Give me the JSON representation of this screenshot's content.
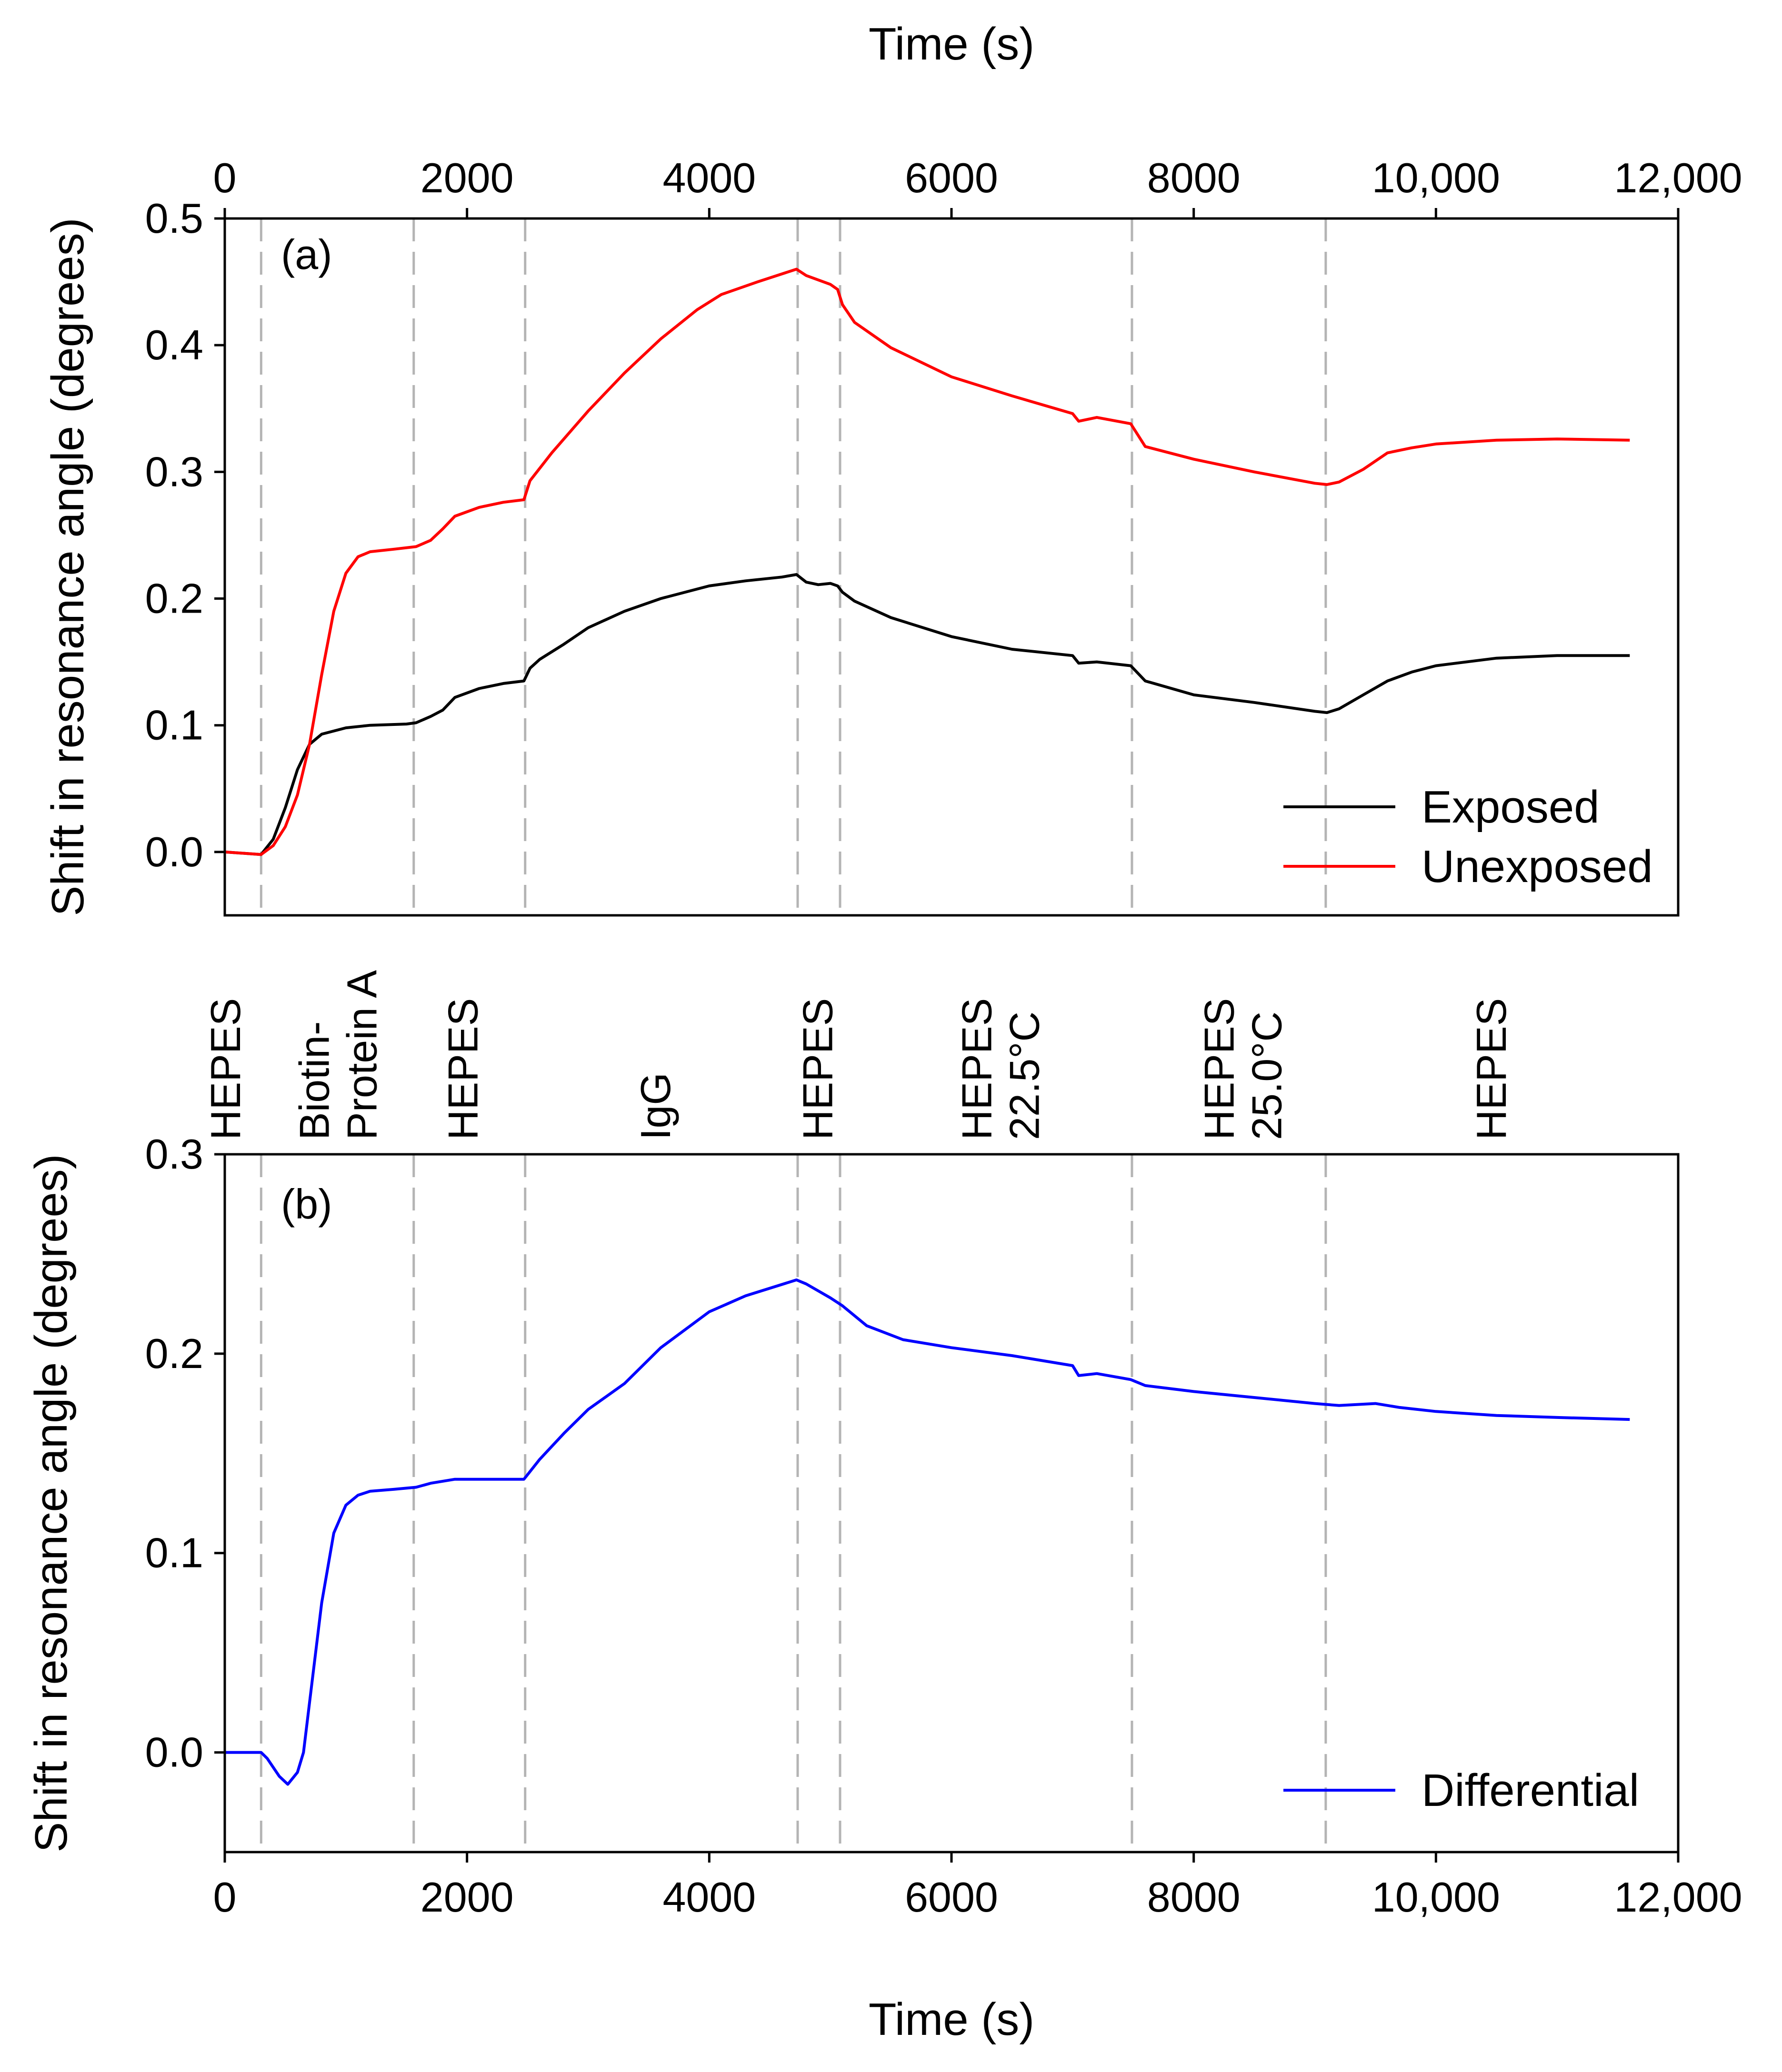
{
  "chart_data": [
    {
      "type": "line",
      "panel_label": "(a)",
      "xlabel_top": "Time (s)",
      "xlabel": "",
      "ylabel": "Shift in resonance angle (degrees)",
      "xlim": [
        0,
        12000
      ],
      "ylim": [
        -0.05,
        0.5
      ],
      "x_ticks": [
        0,
        2000,
        4000,
        6000,
        8000,
        10000,
        12000
      ],
      "x_tick_labels": [
        "0",
        "2000",
        "4000",
        "6000",
        "8000",
        "10,000",
        "12,000"
      ],
      "y_ticks": [
        0.0,
        0.1,
        0.2,
        0.3,
        0.4,
        0.5
      ],
      "y_tick_labels": [
        "0.0",
        "0.1",
        "0.2",
        "0.3",
        "0.4",
        "0.5"
      ],
      "grid": false,
      "legend_position": "bottom-right",
      "series": [
        {
          "name": "Exposed",
          "color": "#000000",
          "x": [
            0,
            300,
            400,
            500,
            600,
            700,
            800,
            1000,
            1200,
            1500,
            1580,
            1700,
            1800,
            1900,
            2100,
            2300,
            2470,
            2520,
            2600,
            2800,
            3000,
            3300,
            3600,
            4000,
            4300,
            4600,
            4720,
            4800,
            4900,
            5000,
            5060,
            5100,
            5200,
            5500,
            6000,
            6500,
            7000,
            7050,
            7200,
            7480,
            7600,
            8000,
            8500,
            9000,
            9100,
            9200,
            9400,
            9600,
            9800,
            10000,
            10500,
            11000,
            11600
          ],
          "y": [
            0.0,
            -0.002,
            0.01,
            0.035,
            0.065,
            0.085,
            0.093,
            0.098,
            0.1,
            0.101,
            0.102,
            0.107,
            0.112,
            0.122,
            0.129,
            0.133,
            0.135,
            0.145,
            0.152,
            0.164,
            0.177,
            0.19,
            0.2,
            0.21,
            0.214,
            0.217,
            0.219,
            0.213,
            0.211,
            0.212,
            0.21,
            0.205,
            0.198,
            0.185,
            0.17,
            0.16,
            0.155,
            0.149,
            0.15,
            0.147,
            0.135,
            0.124,
            0.118,
            0.111,
            0.11,
            0.113,
            0.124,
            0.135,
            0.142,
            0.147,
            0.153,
            0.155,
            0.155
          ]
        },
        {
          "name": "Unexposed",
          "color": "#ff0000",
          "x": [
            0,
            300,
            400,
            500,
            600,
            700,
            800,
            900,
            1000,
            1100,
            1200,
            1400,
            1580,
            1700,
            1800,
            1900,
            2100,
            2300,
            2470,
            2520,
            2700,
            3000,
            3300,
            3600,
            3900,
            4100,
            4400,
            4720,
            4800,
            5000,
            5060,
            5100,
            5200,
            5500,
            6000,
            6500,
            7000,
            7050,
            7200,
            7480,
            7600,
            8000,
            8500,
            9000,
            9100,
            9200,
            9400,
            9600,
            9800,
            10000,
            10500,
            11000,
            11600
          ],
          "y": [
            0.0,
            -0.002,
            0.005,
            0.02,
            0.045,
            0.085,
            0.14,
            0.19,
            0.22,
            0.233,
            0.237,
            0.239,
            0.241,
            0.246,
            0.255,
            0.265,
            0.272,
            0.276,
            0.278,
            0.293,
            0.315,
            0.348,
            0.378,
            0.405,
            0.428,
            0.44,
            0.45,
            0.46,
            0.455,
            0.448,
            0.444,
            0.432,
            0.418,
            0.398,
            0.375,
            0.36,
            0.346,
            0.34,
            0.343,
            0.338,
            0.32,
            0.31,
            0.3,
            0.291,
            0.29,
            0.292,
            0.302,
            0.315,
            0.319,
            0.322,
            0.325,
            0.326,
            0.325
          ]
        }
      ]
    },
    {
      "type": "line",
      "panel_label": "(b)",
      "xlabel": "Time (s)",
      "ylabel": "Shift in resonance angle (degrees)",
      "xlim": [
        0,
        12000
      ],
      "ylim": [
        -0.05,
        0.3
      ],
      "x_ticks": [
        0,
        2000,
        4000,
        6000,
        8000,
        10000,
        12000
      ],
      "x_tick_labels": [
        "0",
        "2000",
        "4000",
        "6000",
        "8000",
        "10,000",
        "12,000"
      ],
      "y_ticks": [
        0.0,
        0.1,
        0.2,
        0.3
      ],
      "y_tick_labels": [
        "0.0",
        "0.1",
        "0.2",
        "0.3"
      ],
      "grid": false,
      "legend_position": "bottom-right",
      "series": [
        {
          "name": "Differential",
          "color": "#0000ff",
          "x": [
            0,
            300,
            350,
            450,
            520,
            600,
            650,
            700,
            800,
            900,
            1000,
            1100,
            1200,
            1400,
            1580,
            1700,
            1900,
            2100,
            2470,
            2600,
            2800,
            3000,
            3300,
            3600,
            4000,
            4300,
            4720,
            4800,
            5000,
            5100,
            5300,
            5600,
            6000,
            6500,
            7000,
            7050,
            7200,
            7480,
            7600,
            8000,
            8500,
            9000,
            9200,
            9500,
            9700,
            10000,
            10500,
            11000,
            11600
          ],
          "y": [
            0.0,
            0.0,
            -0.003,
            -0.012,
            -0.016,
            -0.01,
            0.0,
            0.025,
            0.075,
            0.11,
            0.124,
            0.129,
            0.131,
            0.132,
            0.133,
            0.135,
            0.137,
            0.137,
            0.137,
            0.147,
            0.16,
            0.172,
            0.185,
            0.203,
            0.221,
            0.229,
            0.237,
            0.235,
            0.228,
            0.224,
            0.214,
            0.207,
            0.203,
            0.199,
            0.194,
            0.189,
            0.19,
            0.187,
            0.184,
            0.181,
            0.178,
            0.175,
            0.174,
            0.175,
            0.173,
            0.171,
            0.169,
            0.168,
            0.167
          ]
        }
      ]
    }
  ],
  "phase_boundaries_s": [
    300,
    1560,
    2480,
    4730,
    5080,
    7490,
    9090
  ],
  "segments": [
    {
      "lines": [
        "HEPES"
      ],
      "x_center": 0
    },
    {
      "lines": [
        "Biotin-",
        "Protein A"
      ],
      "x_center": 930
    },
    {
      "lines": [
        "HEPES"
      ],
      "x_center": 1960
    },
    {
      "lines": [
        "IgG"
      ],
      "x_center": 3550
    },
    {
      "lines": [
        "HEPES"
      ],
      "x_center": 4890
    },
    {
      "lines": [
        "HEPES",
        "22.5°C"
      ],
      "x_center": 6400
    },
    {
      "lines": [
        "HEPES",
        "25.0°C"
      ],
      "x_center": 8400
    },
    {
      "lines": [
        "HEPES"
      ],
      "x_center": 10450
    }
  ],
  "colors": {
    "exposed": "#000000",
    "unexposed": "#ff0000",
    "differential": "#0000ff",
    "boundary": "#b4b4b4"
  }
}
